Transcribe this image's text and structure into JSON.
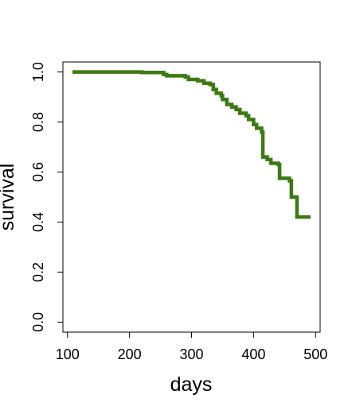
{
  "chart_data": {
    "type": "step",
    "xlabel": "days",
    "ylabel": "survival",
    "x": [
      108,
      220,
      255,
      260,
      290,
      295,
      310,
      320,
      330,
      335,
      340,
      348,
      350,
      357,
      365,
      372,
      378,
      388,
      392,
      400,
      405,
      413,
      415,
      422,
      428,
      440,
      442,
      458,
      461,
      467,
      470,
      492
    ],
    "values": [
      1.0,
      0.998,
      0.99,
      0.985,
      0.98,
      0.97,
      0.965,
      0.955,
      0.95,
      0.93,
      0.915,
      0.905,
      0.89,
      0.87,
      0.86,
      0.85,
      0.835,
      0.825,
      0.81,
      0.79,
      0.775,
      0.76,
      0.66,
      0.65,
      0.635,
      0.63,
      0.575,
      0.565,
      0.5,
      0.5,
      0.42,
      0.42
    ],
    "color": "#3b7a12",
    "xlim": [
      92.6,
      507.4
    ],
    "xticks": [
      100,
      200,
      300,
      400,
      500
    ],
    "ylim": [
      -0.04,
      1.04
    ],
    "yticks": [
      {
        "value": 0,
        "label": "0.0"
      },
      0.2,
      0.4,
      0.6,
      0.8,
      {
        "value": 1,
        "label": "1.0"
      }
    ]
  }
}
